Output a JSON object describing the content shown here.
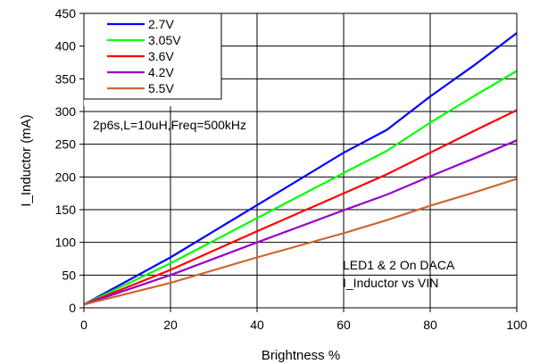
{
  "chart_data": {
    "type": "line",
    "xlabel": "Brightness %",
    "ylabel": "I_Inductor (mA)",
    "xlim": [
      0,
      100
    ],
    "ylim": [
      0,
      450
    ],
    "xticks": [
      0,
      20,
      40,
      60,
      80,
      100
    ],
    "yticks": [
      0,
      50,
      100,
      150,
      200,
      250,
      300,
      350,
      400,
      450
    ],
    "grid": true,
    "legend_position": "top-left",
    "annotations": [
      "2p6s,L=10uH,Freq=500kHz",
      "LED1 & 2 On DACA",
      "I_Inductor vs VIN"
    ],
    "series": [
      {
        "name": "2.7V",
        "color": "#0000ff",
        "x": [
          0,
          20,
          40,
          60,
          70,
          80,
          90,
          100
        ],
        "y": [
          5,
          77,
          157,
          237,
          272,
          323,
          370,
          420
        ]
      },
      {
        "name": "3.05V",
        "color": "#00ff00",
        "x": [
          0,
          20,
          40,
          60,
          70,
          80,
          90,
          100
        ],
        "y": [
          5,
          68,
          137,
          206,
          240,
          283,
          323,
          362
        ]
      },
      {
        "name": "3.6V",
        "color": "#ff0000",
        "x": [
          0,
          20,
          40,
          60,
          70,
          80,
          90,
          100
        ],
        "y": [
          5,
          58,
          117,
          175,
          204,
          237,
          270,
          302
        ]
      },
      {
        "name": "4.2V",
        "color": "#9900cc",
        "x": [
          0,
          20,
          40,
          60,
          70,
          80,
          90,
          100
        ],
        "y": [
          5,
          50,
          100,
          149,
          173,
          201,
          228,
          256
        ]
      },
      {
        "name": "5.5V",
        "color": "#cc6633",
        "x": [
          0,
          20,
          40,
          60,
          70,
          80,
          90,
          100
        ],
        "y": [
          5,
          38,
          77,
          114,
          134,
          156,
          176,
          197
        ]
      }
    ]
  }
}
